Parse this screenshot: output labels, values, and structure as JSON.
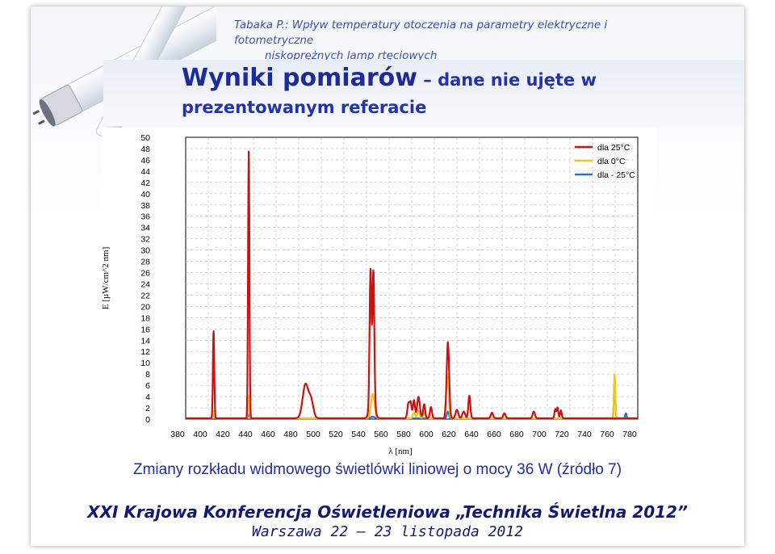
{
  "header": {
    "line1": "Tabaka P.: Wpływ temperatury otoczenia na parametry elektryczne i fotometryczne",
    "line2": "niskoprężnych lamp rtęciowych"
  },
  "title": {
    "main": "Wyniki pomiarów",
    "dash": " – ",
    "rest_a": "dane nie ujęte w",
    "rest_b": "prezentowanym referacie"
  },
  "caption": "Zmiany rozkładu widmowego świetlówki liniowej o mocy 36 W (źródło 7)",
  "footer": {
    "line1": "XXI Krajowa Konferencja Oświetleniowa „Technika Świetlna 2012”",
    "line2": "Warszawa 22 – 23 listopada 2012"
  },
  "colors": {
    "accent": "#1c2b9a",
    "footer": "#121a6e"
  },
  "chart_data": {
    "type": "line",
    "xlabel": "λ [nm]",
    "ylabel": "E [µW/cm^2 nm]",
    "xlim": [
      380,
      780
    ],
    "ylim": [
      0,
      50
    ],
    "x_ticks": [
      380,
      400,
      420,
      440,
      460,
      480,
      500,
      520,
      540,
      560,
      580,
      600,
      620,
      640,
      660,
      680,
      700,
      720,
      740,
      760,
      780
    ],
    "y_ticks": [
      0,
      2,
      4,
      6,
      8,
      10,
      12,
      14,
      16,
      18,
      20,
      22,
      24,
      26,
      28,
      30,
      32,
      34,
      36,
      38,
      40,
      42,
      44,
      46,
      48,
      50
    ],
    "grid": true,
    "legend_position": "top-right",
    "series": [
      {
        "name": "dla 25°C",
        "color": "#d01010",
        "peaks": [
          {
            "x": 404.7,
            "y": 15.5,
            "w": 0.6
          },
          {
            "x": 435.8,
            "y": 47.5,
            "w": 0.6
          },
          {
            "x": 486,
            "y": 6.0,
            "w": 2.5
          },
          {
            "x": 491,
            "y": 3.0,
            "w": 2.0
          },
          {
            "x": 543.5,
            "y": 23.0,
            "w": 0.8
          },
          {
            "x": 546.1,
            "y": 22.3,
            "w": 0.8
          },
          {
            "x": 545,
            "y": 4.5,
            "w": 2.0
          },
          {
            "x": 577,
            "y": 2.5,
            "w": 0.9
          },
          {
            "x": 579,
            "y": 2.8,
            "w": 0.9
          },
          {
            "x": 582,
            "y": 3.2,
            "w": 0.9
          },
          {
            "x": 586,
            "y": 3.8,
            "w": 1.2
          },
          {
            "x": 591,
            "y": 2.5,
            "w": 0.9
          },
          {
            "x": 597,
            "y": 2.0,
            "w": 0.9
          },
          {
            "x": 612,
            "y": 13.5,
            "w": 1.1
          },
          {
            "x": 620,
            "y": 1.5,
            "w": 1.2
          },
          {
            "x": 626,
            "y": 1.2,
            "w": 1.2
          },
          {
            "x": 631,
            "y": 4.0,
            "w": 0.9
          },
          {
            "x": 651,
            "y": 1.0,
            "w": 1.0
          },
          {
            "x": 662,
            "y": 0.9,
            "w": 1.0
          },
          {
            "x": 688,
            "y": 1.2,
            "w": 1.0
          },
          {
            "x": 707,
            "y": 1.6,
            "w": 0.7
          },
          {
            "x": 709,
            "y": 1.9,
            "w": 0.7
          },
          {
            "x": 712,
            "y": 1.4,
            "w": 0.7
          }
        ]
      },
      {
        "name": "dla 0°C",
        "color": "#f0c818",
        "peaks": [
          {
            "x": 404.7,
            "y": 1.3,
            "w": 0.6
          },
          {
            "x": 435.8,
            "y": 4.0,
            "w": 0.6
          },
          {
            "x": 545.5,
            "y": 4.3,
            "w": 1.5
          },
          {
            "x": 582,
            "y": 1.0,
            "w": 1.0
          },
          {
            "x": 586,
            "y": 1.4,
            "w": 1.0
          },
          {
            "x": 591,
            "y": 1.0,
            "w": 1.0
          },
          {
            "x": 611.5,
            "y": 7.5,
            "w": 1.1
          },
          {
            "x": 759.5,
            "y": 7.8,
            "w": 0.6
          }
        ]
      },
      {
        "name": "dla - 25°C",
        "color": "#2f6fd2",
        "peaks": [
          {
            "x": 404.7,
            "y": 0.5,
            "w": 0.8
          },
          {
            "x": 435.8,
            "y": 0.6,
            "w": 0.8
          },
          {
            "x": 545.5,
            "y": 0.3,
            "w": 1.5
          },
          {
            "x": 612,
            "y": 1.2,
            "w": 0.9
          },
          {
            "x": 759.5,
            "y": 7.2,
            "w": 0.6
          },
          {
            "x": 769.5,
            "y": 0.9,
            "w": 0.6
          }
        ]
      }
    ]
  }
}
